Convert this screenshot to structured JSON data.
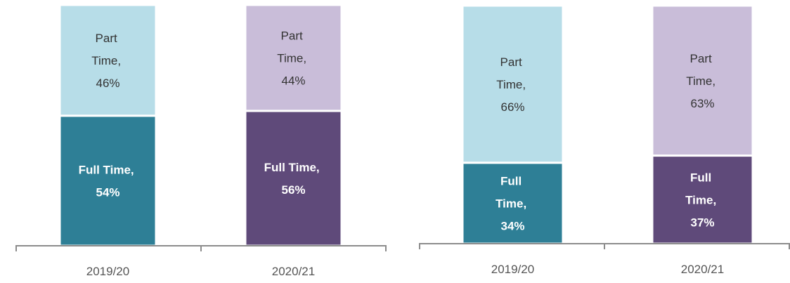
{
  "chart_data": [
    {
      "type": "stacked-bar",
      "categories": [
        "2019/20",
        "2020/21"
      ],
      "series": [
        {
          "values": [
            54,
            56
          ],
          "value_labels": [
            "Full Time, 54%",
            "Full Time, 56%"
          ],
          "colors": [
            "#2e7f96",
            "#5f4a7a"
          ]
        },
        {
          "values": [
            46,
            44
          ],
          "value_labels": [
            "Part Time, 46%",
            "Part Time, 44%"
          ],
          "colors": [
            "#b7dde8",
            "#c9bdd9"
          ]
        }
      ]
    },
    {
      "type": "stacked-bar",
      "categories": [
        "2019/20",
        "2020/21"
      ],
      "series": [
        {
          "values": [
            34,
            37
          ],
          "value_labels": [
            "Full Time, 34%",
            "Full Time, 37%"
          ],
          "colors": [
            "#2e7f96",
            "#5f4a7a"
          ]
        },
        {
          "values": [
            66,
            63
          ],
          "value_labels": [
            "Part Time, 66%",
            "Part Time, 63%"
          ],
          "colors": [
            "#b7dde8",
            "#c9bdd9"
          ]
        }
      ]
    }
  ]
}
